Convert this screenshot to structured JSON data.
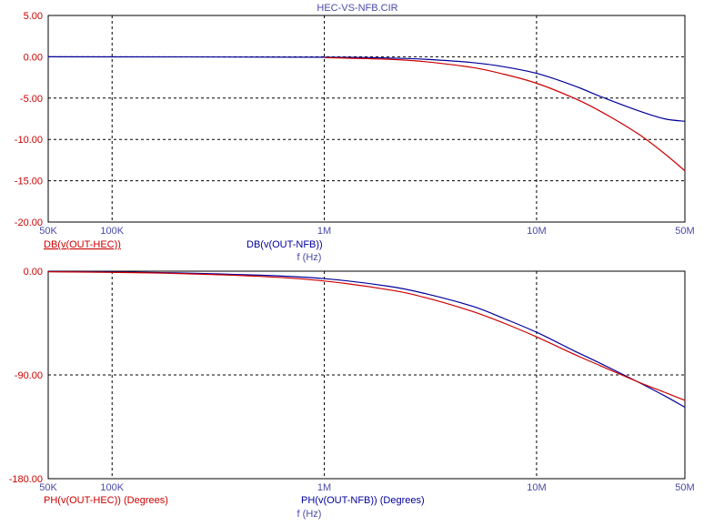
{
  "title": "HEC-VS-NFB.CIR",
  "colors": {
    "hec": "#cc0000",
    "nfb": "#000099",
    "grid": "#000000"
  },
  "chart_data": [
    {
      "type": "line",
      "xscale": "log",
      "xlim": [
        50000,
        50000000
      ],
      "ylim": [
        -20,
        5
      ],
      "grid": true,
      "x_ticks": [
        {
          "value": 50000,
          "label": "50K"
        },
        {
          "value": 100000,
          "label": "100K"
        },
        {
          "value": 1000000,
          "label": "1M"
        },
        {
          "value": 10000000,
          "label": "10M"
        },
        {
          "value": 50000000,
          "label": "50M"
        }
      ],
      "y_ticks": [
        {
          "value": 5,
          "label": "5.00"
        },
        {
          "value": 0,
          "label": "0.00"
        },
        {
          "value": -5,
          "label": "-5.00"
        },
        {
          "value": -10,
          "label": "-10.00"
        },
        {
          "value": -15,
          "label": "-15.00"
        },
        {
          "value": -20,
          "label": "-20.00"
        }
      ],
      "xlabel": "f (Hz)",
      "series": [
        {
          "name": "DB(v(OUT-HEC))",
          "color": "#cc0000",
          "x": [
            1000000,
            2000000,
            3000000,
            5000000,
            7000000,
            10000000,
            15000000,
            20000000,
            30000000,
            40000000,
            50000000
          ],
          "y": [
            -0.1,
            -0.3,
            -0.6,
            -1.3,
            -2.1,
            -3.2,
            -5.0,
            -6.6,
            -9.3,
            -11.7,
            -13.8
          ]
        },
        {
          "name": "DB(v(OUT-NFB))",
          "color": "#000099",
          "x": [
            50000,
            1000000,
            2000000,
            3000000,
            5000000,
            7000000,
            10000000,
            15000000,
            20000000,
            30000000,
            40000000,
            50000000
          ],
          "y": [
            0,
            -0.05,
            -0.15,
            -0.3,
            -0.7,
            -1.2,
            -2.0,
            -3.5,
            -4.8,
            -6.5,
            -7.5,
            -7.8
          ]
        }
      ]
    },
    {
      "type": "line",
      "xscale": "log",
      "xlim": [
        50000,
        50000000
      ],
      "ylim": [
        -180,
        0
      ],
      "grid": true,
      "x_ticks": [
        {
          "value": 50000,
          "label": "50K"
        },
        {
          "value": 100000,
          "label": "100K"
        },
        {
          "value": 1000000,
          "label": "1M"
        },
        {
          "value": 10000000,
          "label": "10M"
        },
        {
          "value": 50000000,
          "label": "50M"
        }
      ],
      "y_ticks": [
        {
          "value": 0,
          "label": "0.00"
        },
        {
          "value": -90,
          "label": "-90.00"
        },
        {
          "value": -180,
          "label": "-180.00"
        }
      ],
      "xlabel": "f (Hz)",
      "series": [
        {
          "name": "PH(v(OUT-HEC)) (Degrees)",
          "color": "#cc0000",
          "x": [
            50000,
            100000,
            200000,
            500000,
            1000000,
            2000000,
            3000000,
            5000000,
            7000000,
            10000000,
            15000000,
            20000000,
            30000000,
            40000000,
            50000000
          ],
          "y": [
            -0.5,
            -1.0,
            -2.0,
            -4.5,
            -8.5,
            -16.0,
            -23.0,
            -35.0,
            -45.0,
            -57.0,
            -72.0,
            -82.0,
            -96.0,
            -105.0,
            -112.0
          ]
        },
        {
          "name": "PH(v(OUT-NFB)) (Degrees)",
          "color": "#000099",
          "x": [
            50000,
            100000,
            200000,
            500000,
            1000000,
            2000000,
            3000000,
            5000000,
            7000000,
            10000000,
            15000000,
            20000000,
            30000000,
            40000000,
            50000000
          ],
          "y": [
            -0.3,
            -0.7,
            -1.5,
            -3.5,
            -6.5,
            -13.0,
            -19.5,
            -30.5,
            -41.0,
            -53.0,
            -69.0,
            -80.0,
            -96.0,
            -108.0,
            -118.0
          ]
        }
      ]
    }
  ]
}
